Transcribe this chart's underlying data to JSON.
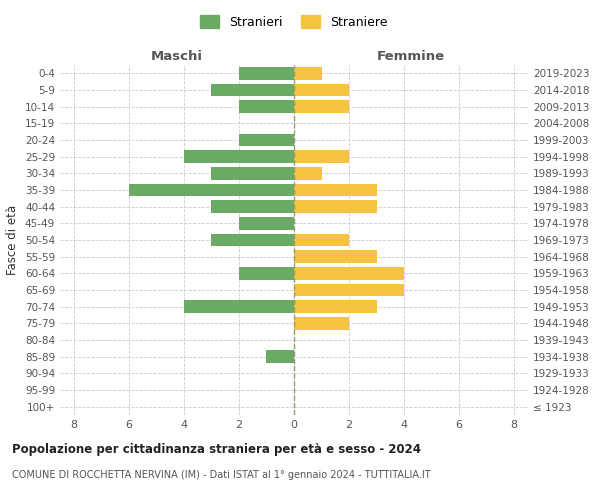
{
  "age_groups": [
    "100+",
    "95-99",
    "90-94",
    "85-89",
    "80-84",
    "75-79",
    "70-74",
    "65-69",
    "60-64",
    "55-59",
    "50-54",
    "45-49",
    "40-44",
    "35-39",
    "30-34",
    "25-29",
    "20-24",
    "15-19",
    "10-14",
    "5-9",
    "0-4"
  ],
  "birth_years": [
    "≤ 1923",
    "1924-1928",
    "1929-1933",
    "1934-1938",
    "1939-1943",
    "1944-1948",
    "1949-1953",
    "1954-1958",
    "1959-1963",
    "1964-1968",
    "1969-1973",
    "1974-1978",
    "1979-1983",
    "1984-1988",
    "1989-1993",
    "1994-1998",
    "1999-2003",
    "2004-2008",
    "2009-2013",
    "2014-2018",
    "2019-2023"
  ],
  "maschi": [
    0,
    0,
    0,
    1,
    0,
    0,
    4,
    0,
    2,
    0,
    3,
    2,
    3,
    6,
    3,
    4,
    2,
    0,
    2,
    3,
    2
  ],
  "femmine": [
    0,
    0,
    0,
    0,
    0,
    2,
    3,
    4,
    4,
    3,
    2,
    0,
    3,
    3,
    1,
    2,
    0,
    0,
    2,
    2,
    1
  ],
  "color_maschi": "#6aaa64",
  "color_femmine": "#f5c242",
  "background_color": "#ffffff",
  "grid_color": "#cccccc",
  "title": "Popolazione per cittadinanza straniera per età e sesso - 2024",
  "subtitle": "COMUNE DI ROCCHETTA NERVINA (IM) - Dati ISTAT al 1° gennaio 2024 - TUTTITALIA.IT",
  "xlabel_left": "Maschi",
  "xlabel_right": "Femmine",
  "ylabel_left": "Fasce di età",
  "legend_stranieri": "Stranieri",
  "legend_straniere": "Straniere",
  "xlim": 8.5,
  "xticks": [
    -8,
    -6,
    -4,
    -2,
    0,
    2,
    4,
    6,
    8
  ],
  "xticklabels": [
    "8",
    "6",
    "4",
    "2",
    "0",
    "2",
    "4",
    "6",
    "8"
  ]
}
